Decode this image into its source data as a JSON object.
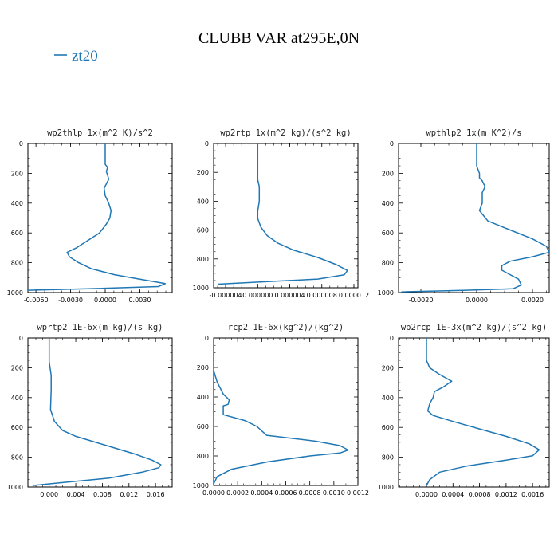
{
  "page": {
    "title": "CLUBB VAR at295E,0N",
    "legend": [
      {
        "name": "zt20",
        "color": "#1f77b4"
      }
    ]
  },
  "chart_data": [
    {
      "type": "line",
      "title": "wp2thlp   1x(m^2 K)/s^2",
      "xlim": [
        -0.0067,
        0.0058
      ],
      "ylim": [
        1000,
        0
      ],
      "xticks": [
        -0.006,
        -0.003,
        0.0,
        0.003
      ],
      "xticklabels": [
        "-0.0060",
        "-0.0030",
        "0.0000",
        "0.0030"
      ],
      "yticks": [
        0,
        200,
        400,
        600,
        800,
        1000
      ],
      "series": [
        {
          "name": "zt20",
          "color": "#1f77b4",
          "x": [
            0.0,
            0.0,
            0.0002,
            0.0001,
            0.0002,
            0.0003,
            0.0001,
            -0.0001,
            0.0,
            0.0003,
            0.0005,
            0.0004,
            0.0001,
            -0.0005,
            -0.0015,
            -0.0025,
            -0.0033,
            -0.0031,
            -0.0023,
            -0.0012,
            0.0008,
            0.003,
            0.0052,
            0.0046,
            -0.0015,
            -0.007
          ],
          "y": [
            0,
            140,
            160,
            190,
            210,
            240,
            270,
            300,
            350,
            400,
            450,
            500,
            540,
            600,
            650,
            700,
            730,
            760,
            800,
            840,
            880,
            910,
            940,
            960,
            975,
            985
          ]
        }
      ]
    },
    {
      "type": "line",
      "title": "wp2rtp   1x(m^2 kg)/(s^2 kg)",
      "xlim": [
        -5.5e-06,
        1.25e-05
      ],
      "ylim": [
        1000,
        0
      ],
      "xticks": [
        -4e-06,
        0.0,
        4e-06,
        8e-06,
        1.2e-05
      ],
      "xticklabels": [
        "-0.000004",
        "0.000000",
        "0.000004",
        "0.000008",
        "0.000012"
      ],
      "yticks": [
        0,
        200,
        400,
        600,
        800,
        1000
      ],
      "series": [
        {
          "name": "zt20",
          "color": "#1f77b4",
          "x": [
            0.0,
            0.0,
            0.0,
            2e-07,
            2e-07,
            0.0,
            0.0,
            4e-07,
            1.2e-06,
            2.5e-06,
            4.5e-06,
            7.5e-06,
            9.8e-06,
            1.12e-05,
            1.08e-05,
            7.5e-06,
            2e-06,
            -5e-06
          ],
          "y": [
            0,
            150,
            250,
            300,
            400,
            470,
            520,
            580,
            640,
            690,
            740,
            790,
            840,
            880,
            910,
            940,
            955,
            975
          ]
        }
      ]
    },
    {
      "type": "line",
      "title": "wpthlp2   1x(m K^2)/s",
      "xlim": [
        -0.0028,
        0.0026
      ],
      "ylim": [
        1000,
        0
      ],
      "xticks": [
        -0.002,
        0.0,
        0.002
      ],
      "xticklabels": [
        "-0.0020",
        "0.0000",
        "0.0020"
      ],
      "yticks": [
        0,
        200,
        400,
        600,
        800,
        1000
      ],
      "series": [
        {
          "name": "zt20",
          "color": "#1f77b4",
          "x": [
            0.0,
            0.0,
            0.0001,
            0.0001,
            0.0002,
            0.0003,
            0.0002,
            0.0002,
            0.0001,
            0.0004,
            0.0012,
            0.002,
            0.0025,
            0.0026,
            0.002,
            0.0012,
            0.0009,
            0.0009,
            0.0012,
            0.0015,
            0.0016,
            0.0013,
            -0.0005,
            -0.0027
          ],
          "y": [
            0,
            150,
            200,
            230,
            250,
            290,
            330,
            400,
            450,
            520,
            580,
            640,
            690,
            730,
            760,
            790,
            820,
            850,
            880,
            910,
            950,
            975,
            985,
            995
          ]
        }
      ]
    },
    {
      "type": "line",
      "title": "wprtp2   1E-6x(m kg)/(s kg)",
      "xlim": [
        -0.0032,
        0.0185
      ],
      "ylim": [
        1000,
        0
      ],
      "xticks": [
        0.0,
        0.004,
        0.008,
        0.012,
        0.016
      ],
      "xticklabels": [
        "0.000",
        "0.004",
        "0.008",
        "0.012",
        "0.016"
      ],
      "yticks": [
        0,
        200,
        400,
        600,
        800,
        1000
      ],
      "series": [
        {
          "name": "zt20",
          "color": "#1f77b4",
          "x": [
            0.0,
            0.0,
            0.0003,
            0.0003,
            0.0002,
            0.0008,
            0.002,
            0.004,
            0.007,
            0.01,
            0.013,
            0.0155,
            0.0168,
            0.0165,
            0.014,
            0.009,
            0.002,
            -0.0025
          ],
          "y": [
            0,
            160,
            250,
            350,
            480,
            560,
            620,
            660,
            700,
            740,
            780,
            820,
            850,
            870,
            900,
            940,
            970,
            990
          ]
        }
      ]
    },
    {
      "type": "line",
      "title": "rcp2   1E-6x(kg^2)/(kg^2)",
      "xlim": [
        0.0,
        0.0012
      ],
      "ylim": [
        1000,
        0
      ],
      "xticks": [
        0.0,
        0.0002,
        0.0004,
        0.0006,
        0.0008,
        0.001,
        0.0012
      ],
      "xticklabels": [
        "0.0000",
        "0.0002",
        "0.0004",
        "0.0006",
        "0.0008",
        "0.0010",
        "0.0012"
      ],
      "yticks": [
        0,
        200,
        400,
        600,
        800,
        1000
      ],
      "series": [
        {
          "name": "zt20",
          "color": "#1f77b4",
          "x": [
            0.0,
            0.0,
            3e-05,
            8e-05,
            0.00013,
            0.00012,
            8e-05,
            8e-05,
            0.00026,
            0.00036,
            0.00044,
            0.00085,
            0.00105,
            0.00112,
            0.00105,
            0.0008,
            0.00045,
            0.00015,
            3e-05,
            0.0
          ],
          "y": [
            0,
            220,
            300,
            380,
            420,
            450,
            460,
            520,
            560,
            600,
            660,
            700,
            730,
            760,
            780,
            800,
            840,
            890,
            940,
            990
          ]
        }
      ]
    },
    {
      "type": "line",
      "title": "wp2rcp   1E-3x(m^2 kg)/(s^2 kg)",
      "xlim": [
        -0.00042,
        0.00185
      ],
      "ylim": [
        1000,
        0
      ],
      "xticks": [
        0.0,
        0.0004,
        0.0008,
        0.0012,
        0.0016
      ],
      "xticklabels": [
        "0.0000",
        "0.0004",
        "0.0008",
        "0.0012",
        "0.0016"
      ],
      "yticks": [
        0,
        200,
        400,
        600,
        800,
        1000
      ],
      "series": [
        {
          "name": "zt20",
          "color": "#1f77b4",
          "x": [
            0.0,
            0.0,
            5e-05,
            0.00018,
            0.0003,
            0.00038,
            0.00025,
            0.00012,
            0.0001,
            5e-05,
            2e-05,
            0.0001,
            0.0004,
            0.0008,
            0.0012,
            0.00155,
            0.0017,
            0.0016,
            0.0012,
            0.0006,
            0.0002,
            5e-05,
            0.0
          ],
          "y": [
            0,
            150,
            200,
            240,
            270,
            290,
            330,
            360,
            400,
            440,
            490,
            520,
            560,
            610,
            660,
            710,
            750,
            790,
            820,
            860,
            900,
            950,
            990
          ]
        }
      ]
    }
  ]
}
